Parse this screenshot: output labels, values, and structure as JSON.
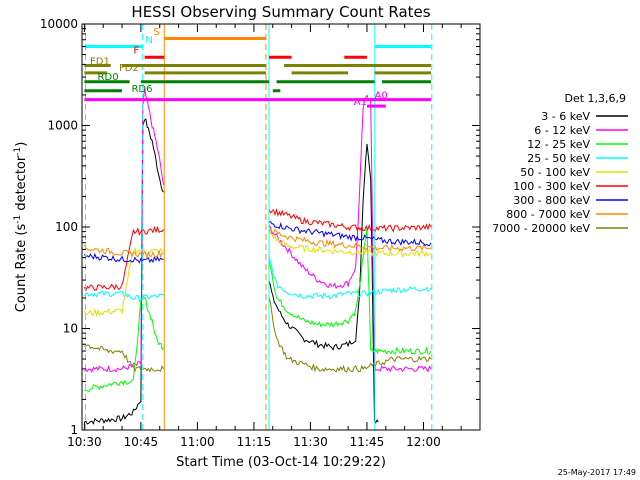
{
  "chart_data": {
    "type": "line",
    "title": "HESSI Observing Summary Count Rates",
    "xlabel": "Start Time (03-Oct-14 10:29:22)",
    "ylabel_main": "Count Rate (s",
    "ylabel_sup1": "-1",
    "ylabel_mid": " detector",
    "ylabel_sup2": "-1",
    "ylabel_end": ")",
    "footer_date": "25-May-2017 17:49",
    "x_range_min": [
      629.37,
      735
    ],
    "y_range": [
      1,
      10000
    ],
    "y_scale": "log",
    "x_ticks": [
      {
        "t": 630,
        "label": "10:30"
      },
      {
        "t": 645,
        "label": "10:45"
      },
      {
        "t": 660,
        "label": "11:00"
      },
      {
        "t": 675,
        "label": "11:15"
      },
      {
        "t": 690,
        "label": "11:30"
      },
      {
        "t": 705,
        "label": "11:45"
      },
      {
        "t": 720,
        "label": "12:00"
      }
    ],
    "y_ticks": [
      {
        "v": 1,
        "label": "1"
      },
      {
        "v": 10,
        "label": "10"
      },
      {
        "v": 100,
        "label": "100"
      },
      {
        "v": 1000,
        "label": "1000"
      },
      {
        "v": 10000,
        "label": "10000"
      }
    ],
    "legend_title": "Det 1,3,6,9",
    "legend_position": "right",
    "series": [
      {
        "name": "3 - 6 keV",
        "color": "#000000",
        "segments": [
          [
            [
              630,
              1.2
            ],
            [
              640,
              1.3
            ],
            [
              643,
              1.5
            ],
            [
              645,
              2
            ],
            [
              645.5,
              1000
            ],
            [
              646,
              1200
            ],
            [
              647,
              900
            ],
            [
              648,
              700
            ],
            [
              649,
              450
            ],
            [
              650,
              300
            ],
            [
              651,
              220
            ]
          ],
          [
            [
              679,
              30
            ],
            [
              680,
              20
            ],
            [
              682,
              14
            ],
            [
              684,
              11
            ],
            [
              688,
              8
            ],
            [
              692,
              7
            ],
            [
              696,
              6.5
            ],
            [
              700,
              7
            ],
            [
              702,
              8
            ],
            [
              703,
              20
            ],
            [
              704,
              200
            ],
            [
              705,
              700
            ],
            [
              706,
              300
            ],
            [
              707,
              1.3
            ],
            [
              708,
              1.2
            ]
          ]
        ]
      },
      {
        "name": "6 - 12 keV",
        "color": "#ff00ff",
        "segments": [
          [
            [
              630,
              4
            ],
            [
              640,
              4
            ],
            [
              645,
              4.5
            ],
            [
              645.5,
              1500
            ],
            [
              646,
              2200
            ],
            [
              647,
              1500
            ],
            [
              648,
              1000
            ],
            [
              649,
              700
            ],
            [
              650,
              450
            ],
            [
              651,
              260
            ]
          ],
          [
            [
              679,
              100
            ],
            [
              681,
              80
            ],
            [
              684,
              60
            ],
            [
              688,
              40
            ],
            [
              692,
              30
            ],
            [
              696,
              26
            ],
            [
              700,
              28
            ],
            [
              702,
              40
            ],
            [
              703,
              200
            ],
            [
              704,
              1500
            ],
            [
              705,
              2000
            ],
            [
              706,
              1800
            ],
            [
              707,
              4
            ],
            [
              710,
              4
            ],
            [
              722,
              4
            ]
          ]
        ]
      },
      {
        "name": "12 - 25 keV",
        "color": "#00ff00",
        "segments": [
          [
            [
              630,
              2.5
            ],
            [
              640,
              3
            ],
            [
              643,
              3
            ],
            [
              645,
              18
            ],
            [
              646,
              20
            ],
            [
              647,
              15
            ],
            [
              648,
              12
            ],
            [
              649,
              8
            ],
            [
              650,
              7
            ],
            [
              651,
              6.5
            ]
          ],
          [
            [
              679,
              50
            ],
            [
              681,
              20
            ],
            [
              684,
              15
            ],
            [
              688,
              12
            ],
            [
              692,
              11
            ],
            [
              696,
              11
            ],
            [
              700,
              12
            ],
            [
              702,
              15
            ],
            [
              703,
              25
            ],
            [
              704,
              50
            ],
            [
              705,
              100
            ],
            [
              706,
              6
            ],
            [
              707,
              6
            ],
            [
              722,
              6
            ]
          ]
        ]
      },
      {
        "name": "25 - 50 keV",
        "color": "#00ffff",
        "segments": [
          [
            [
              630,
              22
            ],
            [
              640,
              22
            ],
            [
              643,
              20
            ],
            [
              645,
              20
            ],
            [
              651,
              21
            ]
          ],
          [
            [
              679,
              50
            ],
            [
              681,
              27
            ],
            [
              684,
              23
            ],
            [
              688,
              21
            ],
            [
              692,
              21
            ],
            [
              696,
              21
            ],
            [
              700,
              22
            ],
            [
              704,
              22
            ],
            [
              708,
              23
            ],
            [
              712,
              24
            ],
            [
              722,
              25
            ]
          ]
        ]
      },
      {
        "name": "50 - 100 keV",
        "color": "#e0e000",
        "segments": [
          [
            [
              630,
              14
            ],
            [
              640,
              15
            ],
            [
              643,
              60
            ],
            [
              645,
              58
            ],
            [
              651,
              58
            ]
          ],
          [
            [
              679,
              90
            ],
            [
              681,
              75
            ],
            [
              684,
              65
            ],
            [
              688,
              62
            ],
            [
              692,
              60
            ],
            [
              696,
              58
            ],
            [
              700,
              57
            ],
            [
              704,
              56
            ],
            [
              708,
              55
            ],
            [
              712,
              55
            ],
            [
              722,
              55
            ]
          ]
        ]
      },
      {
        "name": "100 - 300 keV",
        "color": "#ff0000",
        "segments": [
          [
            [
              630,
              25
            ],
            [
              640,
              26
            ],
            [
              643,
              90
            ],
            [
              645,
              90
            ],
            [
              651,
              95
            ]
          ],
          [
            [
              679,
              150
            ],
            [
              681,
              140
            ],
            [
              684,
              130
            ],
            [
              688,
              115
            ],
            [
              692,
              110
            ],
            [
              696,
              105
            ],
            [
              700,
              100
            ],
            [
              704,
              98
            ],
            [
              708,
              97
            ],
            [
              712,
              97
            ],
            [
              722,
              100
            ]
          ]
        ]
      },
      {
        "name": "300 - 800 keV",
        "color": "#0000ff",
        "segments": [
          [
            [
              630,
              52
            ],
            [
              636,
              50
            ],
            [
              640,
              48
            ],
            [
              643,
              48
            ],
            [
              645,
              46
            ],
            [
              651,
              48
            ]
          ],
          [
            [
              679,
              110
            ],
            [
              681,
              105
            ],
            [
              684,
              98
            ],
            [
              688,
              92
            ],
            [
              692,
              88
            ],
            [
              696,
              84
            ],
            [
              700,
              80
            ],
            [
              704,
              78
            ],
            [
              708,
              74
            ],
            [
              712,
              72
            ],
            [
              722,
              70
            ]
          ]
        ]
      },
      {
        "name": "800 - 7000 keV",
        "color": "#ff8800",
        "segments": [
          [
            [
              630,
              62
            ],
            [
              636,
              58
            ],
            [
              640,
              55
            ],
            [
              643,
              55
            ],
            [
              645,
              53
            ],
            [
              651,
              55
            ]
          ],
          [
            [
              679,
              95
            ],
            [
              681,
              88
            ],
            [
              684,
              80
            ],
            [
              688,
              74
            ],
            [
              692,
              70
            ],
            [
              696,
              68
            ],
            [
              700,
              66
            ],
            [
              704,
              64
            ],
            [
              708,
              62
            ],
            [
              712,
              62
            ],
            [
              722,
              62
            ]
          ]
        ]
      },
      {
        "name": "7000 - 20000 keV",
        "color": "#808000",
        "segments": [
          [
            [
              630,
              7
            ],
            [
              636,
              6
            ],
            [
              640,
              6
            ],
            [
              643,
              4
            ],
            [
              645,
              4
            ],
            [
              651,
              4
            ]
          ],
          [
            [
              679,
              20
            ],
            [
              681,
              8
            ],
            [
              684,
              5
            ],
            [
              688,
              4.5
            ],
            [
              692,
              4
            ],
            [
              696,
              4
            ],
            [
              700,
              4
            ],
            [
              704,
              4
            ],
            [
              708,
              4.5
            ],
            [
              712,
              5
            ],
            [
              722,
              5
            ]
          ]
        ]
      }
    ],
    "vertical_lines": [
      {
        "t": 630.3,
        "color": "#00ffff",
        "style": "dashed"
      },
      {
        "t": 645.5,
        "color": "#00ffff",
        "style": "dashed"
      },
      {
        "t": 651.2,
        "color": "#ff8800",
        "style": "solid"
      },
      {
        "t": 678.2,
        "color": "#ff8800",
        "style": "dashed"
      },
      {
        "t": 679.0,
        "color": "#00ffff",
        "style": "solid"
      },
      {
        "t": 707.1,
        "color": "#00ffff",
        "style": "solid"
      },
      {
        "t": 722.2,
        "color": "#00ffff",
        "style": "dashed"
      }
    ],
    "flag_bars": [
      {
        "label": "N",
        "color": "#00ffff",
        "y": 6000,
        "segments": [
          [
            630,
            645.5
          ],
          [
            707,
            722
          ]
        ],
        "label_t": 646.2,
        "label_y": 6500
      },
      {
        "label": "S",
        "color": "#ff8800",
        "y": 7200,
        "segments": [
          [
            651.2,
            678.2
          ]
        ],
        "label_t": 648.3,
        "label_y": 7800
      },
      {
        "label": "F",
        "color": "#ff0000",
        "y": 4700,
        "segments": [
          [
            646,
            651.2
          ],
          [
            679,
            685
          ],
          [
            699,
            705
          ]
        ],
        "label_t": 643,
        "label_y": 5100
      },
      {
        "label": "FD1",
        "color": "#808000",
        "y": 3900,
        "segments": [
          [
            630,
            637
          ],
          [
            640,
            678.2
          ],
          [
            683,
            722
          ]
        ],
        "label_t": 631.5,
        "label_y": 4000
      },
      {
        "label": "FD2",
        "color": "#808000",
        "y": 3300,
        "segments": [
          [
            630,
            636
          ],
          [
            646,
            678.2
          ],
          [
            685,
            700
          ],
          [
            707,
            722
          ]
        ],
        "label_t": 639.2,
        "label_y": 3450
      },
      {
        "label": "RD0",
        "color": "#008000",
        "y": 2700,
        "segments": [
          [
            630,
            642
          ],
          [
            645,
            679
          ],
          [
            681,
            707
          ],
          [
            709,
            722
          ]
        ],
        "label_t": 633.5,
        "label_y": 2800
      },
      {
        "label": "RD6",
        "color": "#008000",
        "y": 2200,
        "segments": [
          [
            630,
            640
          ],
          [
            680,
            682
          ]
        ],
        "label_t": 642.5,
        "label_y": 2150
      },
      {
        "label": "A1",
        "color": "#ff00ff",
        "y": 1800,
        "segments": [
          [
            630,
            722
          ]
        ],
        "label_t": 701.5,
        "label_y": 1600
      },
      {
        "label": "A0",
        "color": "#ff00ff",
        "y": 1550,
        "segments": [
          [
            705,
            710
          ]
        ],
        "label_t": 707,
        "label_y": 1850
      }
    ]
  }
}
